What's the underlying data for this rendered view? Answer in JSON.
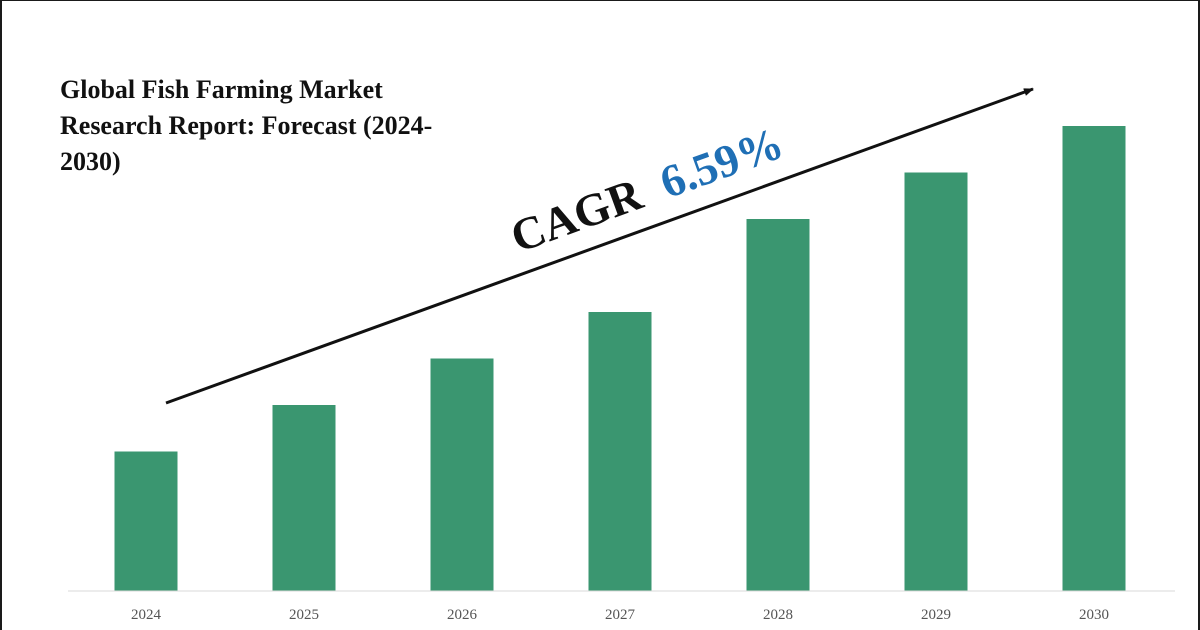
{
  "chart_data": {
    "type": "bar",
    "title": "Global Fish Farming Market Research Report: Forecast (2024-2030)",
    "categories": [
      "2024",
      "2025",
      "2026",
      "2027",
      "2028",
      "2029",
      "2030"
    ],
    "values": [
      30,
      40,
      50,
      60,
      80,
      90,
      100
    ],
    "xlabel": "",
    "ylabel": "",
    "ylim": [
      0,
      110
    ],
    "grid": false,
    "legend": "none",
    "bar_color": "#3a9670",
    "annotation": {
      "label": "CAGR",
      "value": "6.59%",
      "label_color": "#111111",
      "value_color": "#1f6fb5"
    }
  }
}
